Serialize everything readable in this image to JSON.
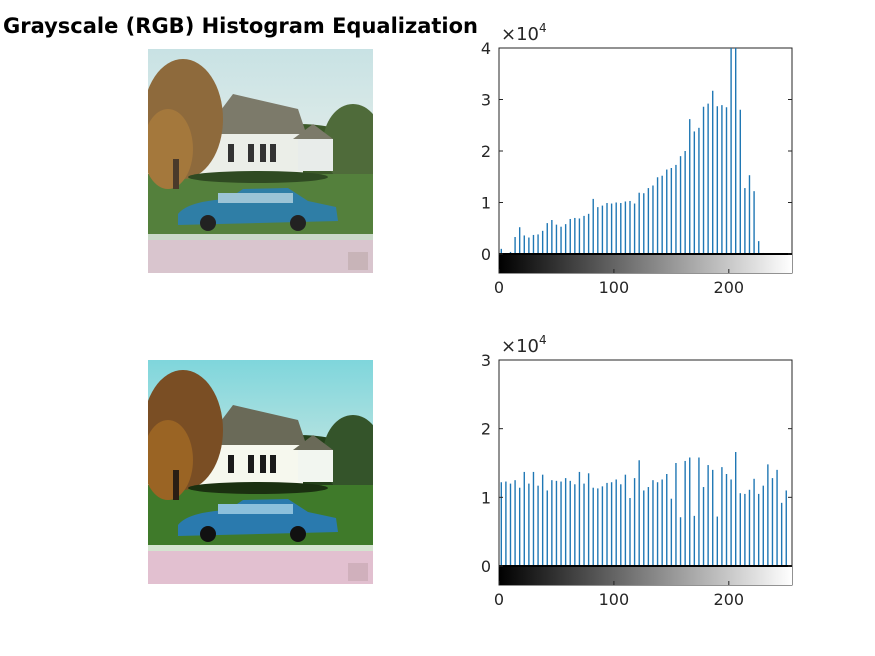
{
  "figure": {
    "title": "Grayscale (RGB) Histogram Equalization"
  },
  "colors": {
    "bar": "#1f77b4",
    "axis": "#262626",
    "sky_top": "#c8e2e4",
    "sky_top_eq": "#7fd6dc"
  },
  "chart_data": [
    {
      "type": "bar",
      "panel": "original",
      "xlim": [
        0,
        255
      ],
      "ylim": [
        0,
        40000
      ],
      "xticks": [
        "0",
        "100",
        "200"
      ],
      "yticks": [
        "0",
        "1",
        "2",
        "3",
        "4"
      ],
      "exponent": {
        "base": "×10",
        "power": "4"
      },
      "colorbar": "gray",
      "bins": [
        2,
        6,
        10,
        14,
        18,
        22,
        26,
        30,
        34,
        38,
        42,
        46,
        50,
        54,
        58,
        62,
        66,
        70,
        74,
        78,
        82,
        86,
        90,
        94,
        98,
        102,
        106,
        110,
        114,
        118,
        122,
        126,
        130,
        134,
        138,
        142,
        146,
        150,
        154,
        158,
        162,
        166,
        170,
        174,
        178,
        182,
        186,
        190,
        194,
        198,
        202,
        206,
        210,
        214,
        218,
        222,
        226,
        230,
        234
      ],
      "values": [
        1000,
        200,
        400,
        3300,
        5200,
        3600,
        3200,
        3700,
        3800,
        4500,
        6000,
        6600,
        5700,
        5300,
        5800,
        6800,
        7000,
        6900,
        7400,
        7800,
        10700,
        9100,
        9400,
        9900,
        9800,
        10000,
        9900,
        10200,
        10300,
        9800,
        11900,
        11800,
        12800,
        13300,
        14900,
        15200,
        16400,
        16700,
        17300,
        19000,
        20000,
        26200,
        23800,
        24500,
        28600,
        29200,
        31700,
        28700,
        28900,
        28500,
        40000,
        40000,
        28000,
        12800,
        15300,
        12200,
        2500,
        200,
        0
      ]
    },
    {
      "type": "bar",
      "panel": "equalized",
      "xlim": [
        0,
        255
      ],
      "ylim": [
        0,
        30000
      ],
      "xticks": [
        "0",
        "100",
        "200"
      ],
      "yticks": [
        "0",
        "1",
        "2",
        "3"
      ],
      "exponent": {
        "base": "×10",
        "power": "4"
      },
      "colorbar": "gray",
      "bins": [
        2,
        6,
        10,
        14,
        18,
        22,
        26,
        30,
        34,
        38,
        42,
        46,
        50,
        54,
        58,
        62,
        66,
        70,
        74,
        78,
        82,
        86,
        90,
        94,
        98,
        102,
        106,
        110,
        114,
        118,
        122,
        126,
        130,
        134,
        138,
        142,
        146,
        150,
        154,
        158,
        162,
        166,
        170,
        174,
        178,
        182,
        186,
        190,
        194,
        198,
        202,
        206,
        210,
        214,
        218,
        222,
        226,
        230,
        234,
        238,
        242,
        246,
        250,
        254
      ],
      "values": [
        12200,
        12300,
        12000,
        12500,
        11400,
        13700,
        12000,
        13700,
        11700,
        13300,
        11000,
        12500,
        12400,
        12300,
        12800,
        12400,
        11900,
        13700,
        12000,
        13500,
        11400,
        11300,
        11600,
        12100,
        12200,
        12600,
        11900,
        13300,
        9900,
        12800,
        15400,
        11000,
        11500,
        12500,
        12200,
        12600,
        13400,
        9800,
        15000,
        7100,
        15300,
        15800,
        7300,
        15800,
        11500,
        14700,
        14000,
        7200,
        14400,
        13400,
        12600,
        16600,
        10600,
        10500,
        11100,
        12700,
        10500,
        11700,
        14800,
        12800,
        14000,
        9200,
        11000,
        0
      ]
    }
  ]
}
